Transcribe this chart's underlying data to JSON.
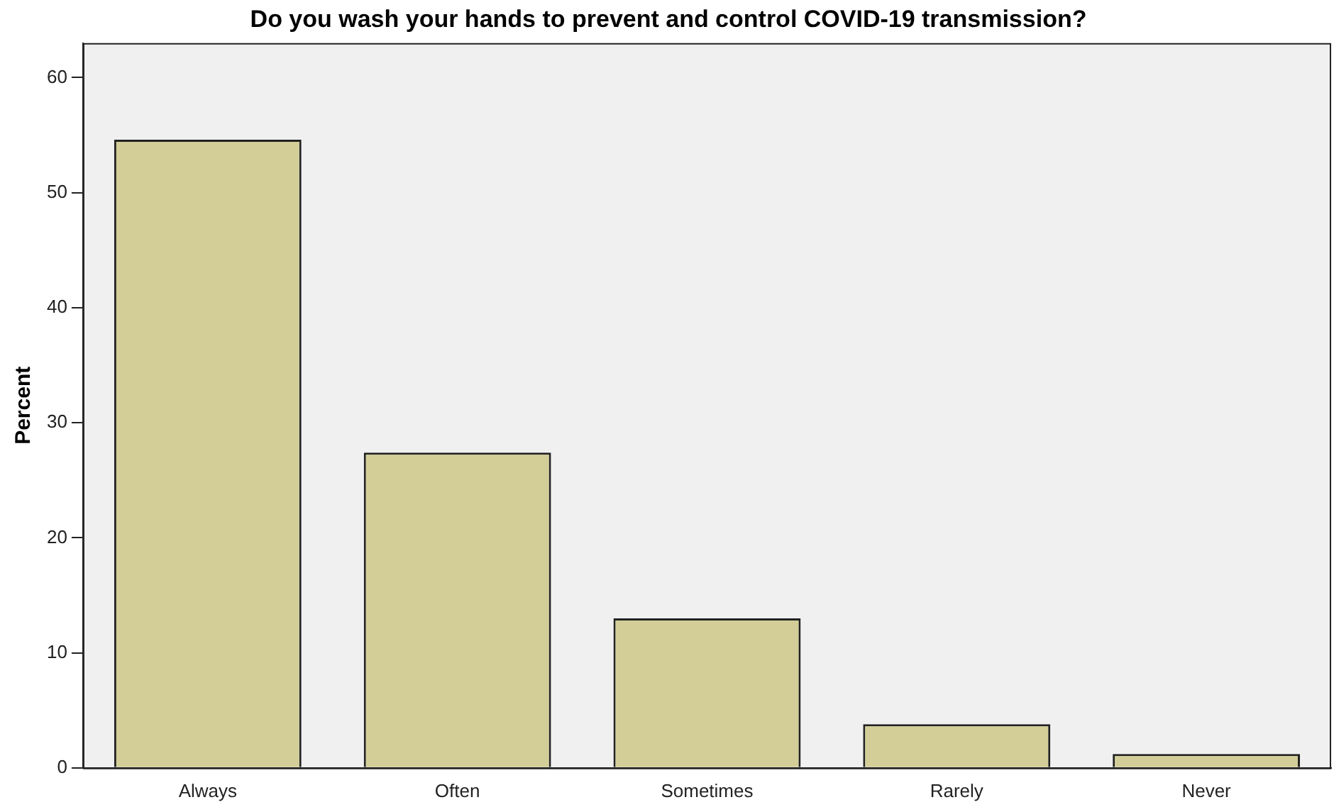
{
  "chart_data": {
    "type": "bar",
    "title": "Do you wash your hands to prevent and control COVID-19 transmission?",
    "ylabel": "Percent",
    "categories": [
      "Always",
      "Often",
      "Sometimes",
      "Rarely",
      "Never"
    ],
    "values": [
      54.6,
      27.4,
      13.0,
      3.8,
      1.2
    ],
    "color": "#d3ce97",
    "ylim": [
      0,
      63
    ],
    "yticks": [
      0,
      10,
      20,
      30,
      40,
      50,
      60
    ],
    "grid": false,
    "legend": false
  }
}
